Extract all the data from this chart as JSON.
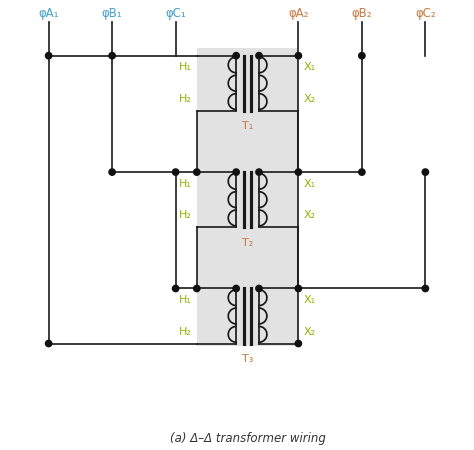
{
  "title": "(a) Δ–Δ transformer wiring",
  "bg_color": "#ffffff",
  "gray_box_color": "#e2e2e2",
  "line_color": "#1a1a1a",
  "label_color_green": "#8db600",
  "label_color_blue": "#45a0c8",
  "label_color_orange": "#c87840",
  "dot_color": "#111111",
  "phase_labels_left": [
    "φA₁",
    "φB₁",
    "φC₁"
  ],
  "phase_labels_right": [
    "φA₂",
    "φB₂",
    "φC₂"
  ],
  "transformer_labels": [
    "T₁",
    "T₂",
    "T₃"
  ]
}
